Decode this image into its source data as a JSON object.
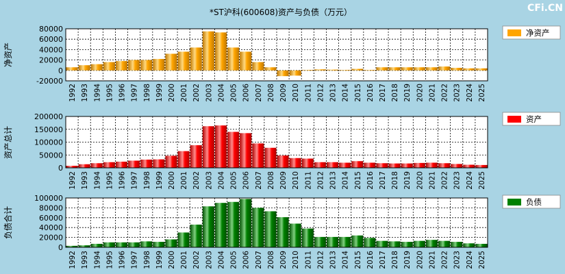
{
  "title": "*ST沪科(600608)资产与负债（万元）",
  "watermark": "CFi.CN",
  "colors": {
    "background": "#a9d4e4",
    "plot_background": "#ffffff",
    "grid": "#000000",
    "legend_border": "#888888"
  },
  "chart_data": [
    {
      "type": "bar",
      "name": "net-assets",
      "ylabel": "净资产",
      "legend": "净资产",
      "color": "#ffa500",
      "color_light": "#ffd980",
      "color_dark": "#c07800",
      "ylim": [
        -20000,
        80000
      ],
      "yticks": [
        "80000",
        "60000",
        "40000",
        "20000",
        "0",
        "-20000"
      ],
      "ytick_values": [
        80000,
        60000,
        40000,
        20000,
        0,
        -20000
      ],
      "categories": [
        "1992",
        "1993",
        "1994",
        "1995",
        "1996",
        "1997",
        "1998",
        "1999",
        "2000",
        "2001",
        "2002",
        "2003",
        "2004",
        "2005",
        "2006",
        "2007",
        "2008",
        "2009",
        "2010",
        "2011",
        "2012",
        "2013",
        "2014",
        "2015",
        "2016",
        "2017",
        "2018",
        "2019",
        "2020",
        "2021",
        "2022",
        "2023",
        "2024",
        "2025"
      ],
      "values": [
        6000,
        10000,
        12000,
        16000,
        18000,
        20000,
        20000,
        22000,
        32000,
        36000,
        44000,
        75000,
        73000,
        44000,
        36000,
        16000,
        6000,
        -11000,
        -10000,
        1000,
        2000,
        1500,
        1000,
        3000,
        1000,
        6000,
        6000,
        6000,
        6000,
        6000,
        7500,
        5000,
        4000,
        4000
      ]
    },
    {
      "type": "bar",
      "name": "total-assets",
      "ylabel": "资产总计",
      "legend": "资产",
      "color": "#ff0000",
      "color_light": "#ff8c8c",
      "color_dark": "#b00000",
      "ylim": [
        0,
        200000
      ],
      "yticks": [
        "200000",
        "150000",
        "100000",
        "50000",
        "0"
      ],
      "ytick_values": [
        200000,
        150000,
        100000,
        50000,
        0
      ],
      "categories": [
        "1992",
        "1993",
        "1994",
        "1995",
        "1996",
        "1997",
        "1998",
        "1999",
        "2000",
        "2001",
        "2002",
        "2003",
        "2004",
        "2005",
        "2006",
        "2007",
        "2008",
        "2009",
        "2010",
        "2011",
        "2012",
        "2013",
        "2014",
        "2015",
        "2016",
        "2017",
        "2018",
        "2019",
        "2020",
        "2021",
        "2022",
        "2023",
        "2024",
        "2025"
      ],
      "values": [
        8000,
        14000,
        18000,
        22000,
        24000,
        28000,
        32000,
        33000,
        47000,
        65000,
        88000,
        162000,
        165000,
        140000,
        135000,
        95000,
        78000,
        48000,
        38000,
        36000,
        22000,
        22000,
        20000,
        26000,
        20000,
        18000,
        17000,
        17000,
        19000,
        20000,
        18000,
        15000,
        12000,
        11000
      ]
    },
    {
      "type": "bar",
      "name": "total-liabilities",
      "ylabel": "负债合计",
      "legend": "负债",
      "color": "#008000",
      "color_light": "#7fd07f",
      "color_dark": "#005000",
      "ylim": [
        0,
        100000
      ],
      "yticks": [
        "100000",
        "80000",
        "60000",
        "40000",
        "20000",
        "0"
      ],
      "ytick_values": [
        100000,
        80000,
        60000,
        40000,
        20000,
        0
      ],
      "categories": [
        "1992",
        "1993",
        "1994",
        "1995",
        "1996",
        "1997",
        "1998",
        "1999",
        "2000",
        "2001",
        "2002",
        "2003",
        "2004",
        "2005",
        "2006",
        "2007",
        "2008",
        "2009",
        "2010",
        "2011",
        "2012",
        "2013",
        "2014",
        "2015",
        "2016",
        "2017",
        "2018",
        "2019",
        "2020",
        "2021",
        "2022",
        "2023",
        "2024",
        "2025"
      ],
      "values": [
        3000,
        4000,
        7000,
        10000,
        10000,
        10000,
        12000,
        11000,
        16000,
        30000,
        46000,
        83000,
        90000,
        92000,
        98000,
        80000,
        73000,
        61000,
        48000,
        38000,
        21000,
        21000,
        21000,
        24000,
        19000,
        13000,
        12000,
        11000,
        13000,
        15000,
        13000,
        11000,
        8000,
        7000
      ]
    }
  ]
}
